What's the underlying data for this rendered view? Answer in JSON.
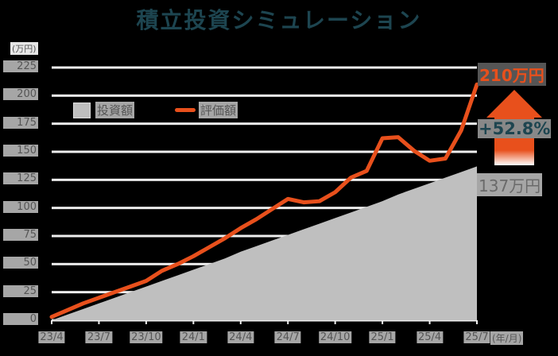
{
  "title": "積立投資シミュレーション",
  "y_unit": "(万円)",
  "x_unit": "(年/月)",
  "y_ticks": [
    "225",
    "200",
    "175",
    "150",
    "125",
    "100",
    "75",
    "50",
    "25",
    "0"
  ],
  "x_ticks": [
    "23/4",
    "23/7",
    "23/10",
    "24/1",
    "24/4",
    "24/7",
    "24/10",
    "25/1",
    "25/4",
    "25/7"
  ],
  "legend": {
    "invested": "投資額",
    "valuation": "評価額"
  },
  "annotations": {
    "final_value": "210万円",
    "gain_pct": "+52.8%",
    "invested_total": "137万円"
  },
  "colors": {
    "valuation_line": "#e8501c",
    "invested_area": "#bfbfbf",
    "title": "#1d4550",
    "grid": "#eeeeee"
  },
  "chart_data": {
    "type": "area+line",
    "title": "積立投資シミュレーション",
    "xlabel": "(年/月)",
    "ylabel": "(万円)",
    "ylim": [
      0,
      225
    ],
    "grid": true,
    "legend_position": "top-left inside",
    "x": [
      "23/4",
      "23/5",
      "23/6",
      "23/7",
      "23/8",
      "23/9",
      "23/10",
      "23/11",
      "23/12",
      "24/1",
      "24/2",
      "24/3",
      "24/4",
      "24/5",
      "24/6",
      "24/7",
      "24/8",
      "24/9",
      "24/10",
      "24/11",
      "24/12",
      "25/1",
      "25/2",
      "25/3",
      "25/4",
      "25/5",
      "25/6",
      "25/7"
    ],
    "series": [
      {
        "name": "投資額",
        "type": "area",
        "values": [
          0,
          5,
          10,
          15,
          20,
          25,
          30,
          35,
          40,
          45,
          50,
          55,
          61,
          66,
          71,
          76,
          81,
          86,
          91,
          96,
          101,
          106,
          112,
          117,
          122,
          127,
          132,
          137
        ]
      },
      {
        "name": "評価額",
        "type": "line",
        "values": [
          3,
          9,
          15,
          20,
          25,
          30,
          35,
          44,
          50,
          57,
          65,
          73,
          82,
          90,
          99,
          108,
          105,
          106,
          114,
          127,
          133,
          162,
          163,
          151,
          142,
          144,
          169,
          210
        ]
      }
    ],
    "annotations": [
      "210万円",
      "+52.8%",
      "137万円"
    ]
  }
}
